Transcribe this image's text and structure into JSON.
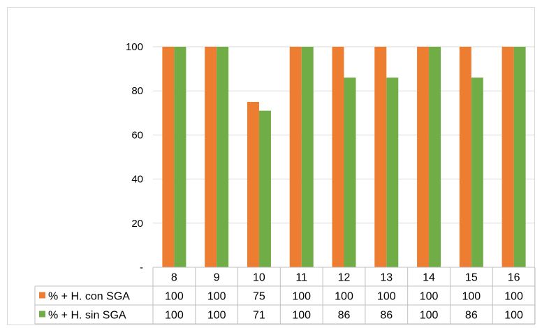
{
  "chart_data": {
    "type": "bar",
    "categories": [
      "8",
      "9",
      "10",
      "11",
      "12",
      "13",
      "14",
      "15",
      "16"
    ],
    "series": [
      {
        "name": "% + H. con SGA",
        "color": "#ed7d31",
        "values": [
          100,
          100,
          75,
          100,
          100,
          100,
          100,
          100,
          100
        ]
      },
      {
        "name": "% + H. sin SGA",
        "color": "#70ad47",
        "values": [
          100,
          100,
          71,
          100,
          86,
          86,
          100,
          86,
          100
        ]
      }
    ],
    "yticks": [
      "-",
      "20",
      "40",
      "60",
      "80",
      "100"
    ],
    "ylim": [
      0,
      100
    ],
    "grid": true,
    "legend": "data-table",
    "title": "",
    "xlabel": "",
    "ylabel": ""
  }
}
